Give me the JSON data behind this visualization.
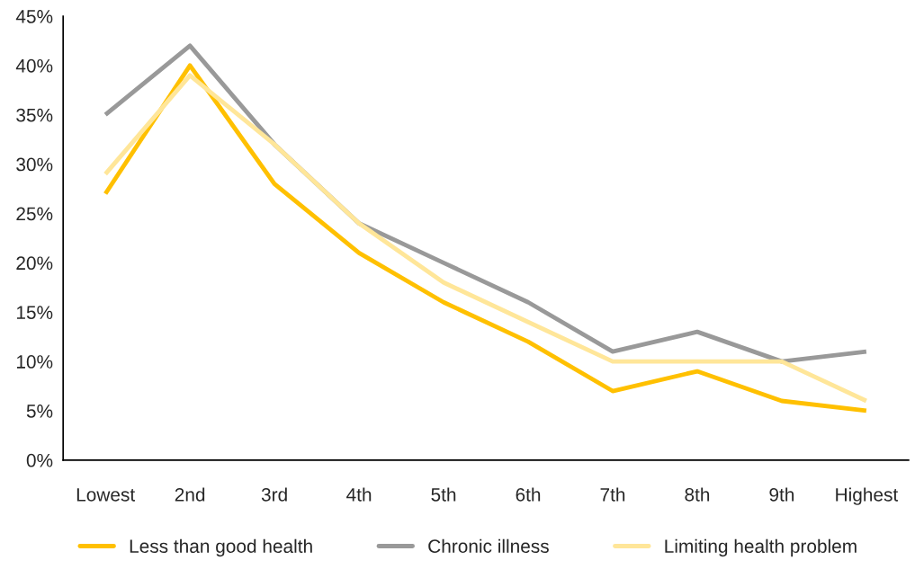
{
  "chart_data": {
    "type": "line",
    "categories": [
      "Lowest",
      "2nd",
      "3rd",
      "4th",
      "5th",
      "6th",
      "7th",
      "8th",
      "9th",
      "Highest"
    ],
    "series": [
      {
        "name": "Less than good health",
        "color": "#ffc000",
        "values": [
          27,
          40,
          28,
          21,
          16,
          12,
          7,
          9,
          6,
          5
        ]
      },
      {
        "name": "Chronic illness",
        "color": "#999999",
        "values": [
          35,
          42,
          32,
          24,
          20,
          16,
          11,
          13,
          10,
          11
        ]
      },
      {
        "name": "Limiting health problem",
        "color": "#ffe699",
        "values": [
          29,
          39,
          32,
          24,
          18,
          14,
          10,
          10,
          10,
          6
        ]
      }
    ],
    "ylim": [
      0,
      45
    ],
    "yticks": [
      {
        "value": 0,
        "label": "0%"
      },
      {
        "value": 5,
        "label": "5%"
      },
      {
        "value": 10,
        "label": "10%"
      },
      {
        "value": 15,
        "label": "15%"
      },
      {
        "value": 20,
        "label": "20%"
      },
      {
        "value": 25,
        "label": "25%"
      },
      {
        "value": 30,
        "label": "30%"
      },
      {
        "value": 35,
        "label": "35%"
      },
      {
        "value": 40,
        "label": "40%"
      },
      {
        "value": 45,
        "label": "45%"
      }
    ],
    "grid": false,
    "legend": "bottom",
    "marker": "none",
    "line_style": "solid"
  }
}
